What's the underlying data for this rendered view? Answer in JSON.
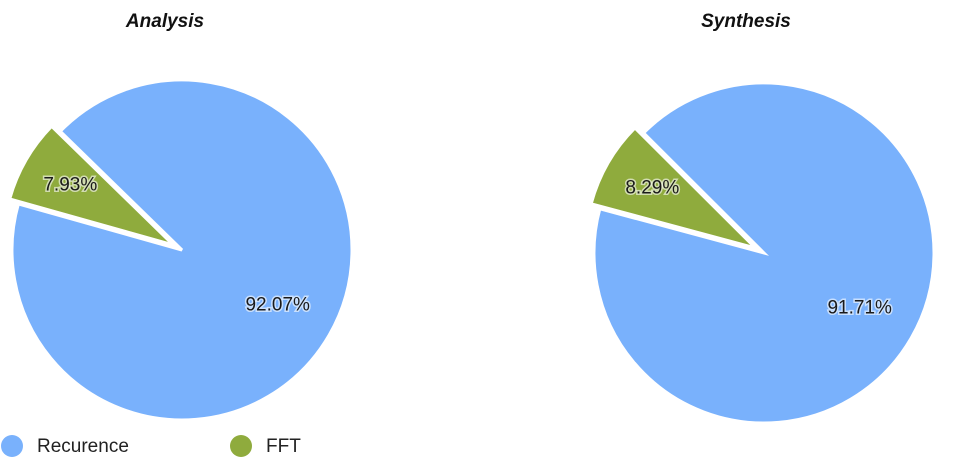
{
  "chart_data": [
    {
      "type": "pie",
      "title": "Analysis",
      "categories": [
        "Recurence",
        "FFT"
      ],
      "values": [
        92.07,
        7.93
      ],
      "value_labels": [
        "92.07%",
        "7.93%"
      ],
      "colors": [
        "#79b1fc",
        "#8fab3d"
      ],
      "legend": "bottom-left"
    },
    {
      "type": "pie",
      "title": "Synthesis",
      "categories": [
        "Recurence",
        "FFT"
      ],
      "values": [
        91.71,
        8.29
      ],
      "value_labels": [
        "91.71%",
        "8.29%"
      ],
      "colors": [
        "#79b1fc",
        "#8fab3d"
      ]
    }
  ]
}
